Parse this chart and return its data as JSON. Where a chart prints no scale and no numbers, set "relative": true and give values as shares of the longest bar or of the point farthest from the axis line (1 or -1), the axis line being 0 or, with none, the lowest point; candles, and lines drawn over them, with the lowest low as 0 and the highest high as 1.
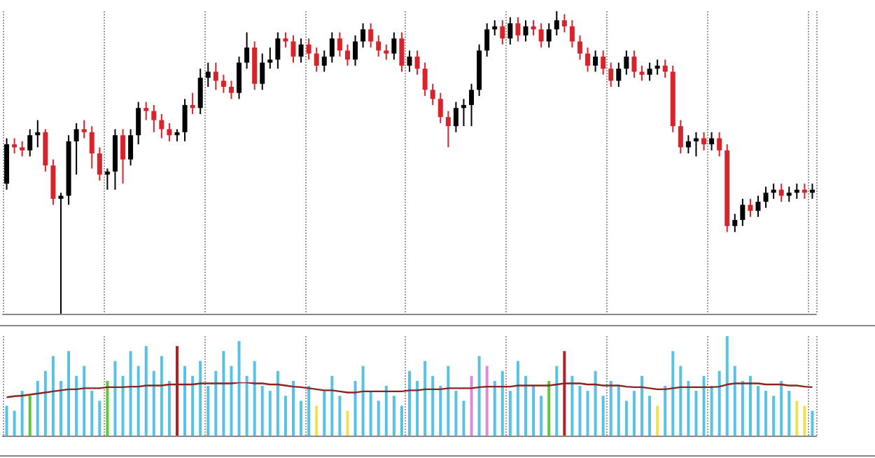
{
  "chart_data": [
    {
      "type": "candlestick",
      "relative": true,
      "grid": "x",
      "colors": [
        "#000000",
        "#d8232a",
        "#d8232a",
        "#000000",
        "#000000",
        "#d8232a",
        "#d8232a",
        "#000000",
        "#000000",
        "#000000",
        "#d8232a",
        "#d8232a",
        "#d8232a",
        "#000000",
        "#000000",
        "#d8232a",
        "#000000",
        "#000000",
        "#d8232a",
        "#d8232a",
        "#d8232a",
        "#d8232a",
        "#000000",
        "#000000",
        "#d8232a",
        "#000000",
        "#000000",
        "#d8232a",
        "#d8232a",
        "#d8232a",
        "#000000",
        "#000000",
        "#d8232a",
        "#000000",
        "#000000",
        "#000000",
        "#d8232a",
        "#d8232a",
        "#000000",
        "#d8232a",
        "#d8232a",
        "#000000",
        "#000000",
        "#d8232a",
        "#d8232a",
        "#000000",
        "#000000",
        "#d8232a",
        "#d8232a",
        "#d8232a",
        "#000000",
        "#d8232a",
        "#000000",
        "#d8232a",
        "#d8232a",
        "#d8232a",
        "#d8232a",
        "#d8232a",
        "#000000",
        "#000000",
        "#000000",
        "#000000",
        "#000000",
        "#000000",
        "#d8232a",
        "#000000",
        "#d8232a",
        "#000000",
        "#d8232a",
        "#d8232a",
        "#000000",
        "#000000",
        "#d8232a",
        "#d8232a",
        "#d8232a",
        "#d8232a",
        "#000000",
        "#d8232a",
        "#d8232a",
        "#000000",
        "#000000",
        "#d8232a",
        "#d8232a",
        "#000000",
        "#000000",
        "#d8232a",
        "#d8232a",
        "#d8232a",
        "#000000",
        "#000000",
        "#d8232a",
        "#000000",
        "#d8232a",
        "#d8232a",
        "#000000",
        "#000000",
        "#d8232a",
        "#000000",
        "#000000",
        "#000000",
        "#d8232a",
        "#000000",
        "#000000",
        "#d8232a",
        "#000000"
      ],
      "categories": [
        null,
        null,
        null,
        null,
        null,
        null,
        null,
        null,
        null,
        null,
        null,
        null,
        null,
        null,
        null,
        null,
        null,
        null,
        null,
        null,
        null,
        null,
        null,
        null,
        null,
        null,
        null,
        null,
        null,
        null,
        null,
        null,
        null,
        null,
        null,
        null,
        null,
        null,
        null,
        null,
        null,
        null,
        null,
        null,
        null,
        null,
        null,
        null,
        null,
        null,
        null,
        null,
        null,
        null,
        null,
        null,
        null,
        null,
        null,
        null,
        null,
        null,
        null,
        null,
        null,
        null,
        null,
        null,
        null,
        null,
        null,
        null,
        null,
        null,
        null,
        null,
        null,
        null,
        null,
        null,
        null,
        null,
        null,
        null,
        null,
        null,
        null,
        null,
        null,
        null,
        null,
        null,
        null,
        null,
        null,
        null,
        null,
        null,
        null,
        null,
        null,
        null,
        null,
        null,
        null
      ],
      "ohlc": [
        [
          0.43,
          0.58,
          0.41,
          0.56
        ],
        [
          0.56,
          0.58,
          0.53,
          0.55
        ],
        [
          0.55,
          0.57,
          0.52,
          0.54
        ],
        [
          0.54,
          0.61,
          0.52,
          0.59
        ],
        [
          0.59,
          0.64,
          0.55,
          0.6
        ],
        [
          0.6,
          0.61,
          0.47,
          0.49
        ],
        [
          0.49,
          0.51,
          0.36,
          0.38
        ],
        [
          0.38,
          0.4,
          0,
          0.39
        ],
        [
          0.39,
          0.59,
          0.36,
          0.57
        ],
        [
          0.57,
          0.63,
          0.46,
          0.61
        ],
        [
          0.61,
          0.64,
          0.58,
          0.6
        ],
        [
          0.6,
          0.62,
          0.48,
          0.53
        ],
        [
          0.53,
          0.55,
          0.44,
          0.46
        ],
        [
          0.46,
          0.48,
          0.41,
          0.47
        ],
        [
          0.47,
          0.61,
          0.41,
          0.59
        ],
        [
          0.59,
          0.61,
          0.43,
          0.51
        ],
        [
          0.51,
          0.61,
          0.49,
          0.59
        ],
        [
          0.59,
          0.7,
          0.56,
          0.68
        ],
        [
          0.68,
          0.7,
          0.64,
          0.67
        ],
        [
          0.67,
          0.69,
          0.6,
          0.64
        ],
        [
          0.64,
          0.66,
          0.58,
          0.61
        ],
        [
          0.61,
          0.63,
          0.57,
          0.59
        ],
        [
          0.59,
          0.61,
          0.57,
          0.6
        ],
        [
          0.6,
          0.71,
          0.57,
          0.69
        ],
        [
          0.69,
          0.73,
          0.66,
          0.68
        ],
        [
          0.68,
          0.81,
          0.66,
          0.78
        ],
        [
          0.78,
          0.83,
          0.75,
          0.8
        ],
        [
          0.8,
          0.83,
          0.74,
          0.77
        ],
        [
          0.77,
          0.79,
          0.73,
          0.75
        ],
        [
          0.75,
          0.77,
          0.71,
          0.73
        ],
        [
          0.73,
          0.85,
          0.71,
          0.83
        ],
        [
          0.83,
          0.93,
          0.81,
          0.88
        ],
        [
          0.88,
          0.9,
          0.74,
          0.76
        ],
        [
          0.76,
          0.86,
          0.74,
          0.83
        ],
        [
          0.83,
          0.88,
          0.81,
          0.84
        ],
        [
          0.84,
          0.93,
          0.81,
          0.91
        ],
        [
          0.91,
          0.93,
          0.88,
          0.9
        ],
        [
          0.9,
          0.92,
          0.83,
          0.85
        ],
        [
          0.85,
          0.91,
          0.83,
          0.89
        ],
        [
          0.89,
          0.91,
          0.84,
          0.86
        ],
        [
          0.86,
          0.88,
          0.8,
          0.82
        ],
        [
          0.82,
          0.87,
          0.8,
          0.85
        ],
        [
          0.85,
          0.93,
          0.83,
          0.91
        ],
        [
          0.91,
          0.93,
          0.85,
          0.87
        ],
        [
          0.87,
          0.89,
          0.82,
          0.84
        ],
        [
          0.84,
          0.92,
          0.82,
          0.9
        ],
        [
          0.9,
          0.96,
          0.88,
          0.94
        ],
        [
          0.94,
          0.96,
          0.88,
          0.9
        ],
        [
          0.9,
          0.92,
          0.85,
          0.87
        ],
        [
          0.87,
          0.89,
          0.84,
          0.86
        ],
        [
          0.86,
          0.93,
          0.84,
          0.91
        ],
        [
          0.91,
          0.93,
          0.8,
          0.82
        ],
        [
          0.82,
          0.87,
          0.8,
          0.85
        ],
        [
          0.85,
          0.87,
          0.79,
          0.81
        ],
        [
          0.81,
          0.83,
          0.72,
          0.74
        ],
        [
          0.74,
          0.76,
          0.69,
          0.71
        ],
        [
          0.71,
          0.73,
          0.63,
          0.65
        ],
        [
          0.65,
          0.67,
          0.55,
          0.62
        ],
        [
          0.62,
          0.7,
          0.6,
          0.68
        ],
        [
          0.68,
          0.71,
          0.62,
          0.69
        ],
        [
          0.69,
          0.76,
          0.62,
          0.74
        ],
        [
          0.74,
          0.89,
          0.72,
          0.87
        ],
        [
          0.87,
          0.96,
          0.85,
          0.94
        ],
        [
          0.94,
          0.97,
          0.92,
          0.95
        ],
        [
          0.95,
          0.97,
          0.89,
          0.91
        ],
        [
          0.91,
          0.98,
          0.89,
          0.96
        ],
        [
          0.96,
          0.98,
          0.9,
          0.92
        ],
        [
          0.92,
          0.97,
          0.9,
          0.95
        ],
        [
          0.95,
          0.97,
          0.92,
          0.94
        ],
        [
          0.94,
          0.96,
          0.88,
          0.9
        ],
        [
          0.9,
          0.96,
          0.88,
          0.94
        ],
        [
          0.94,
          1,
          0.92,
          0.97
        ],
        [
          0.97,
          0.99,
          0.93,
          0.95
        ],
        [
          0.95,
          0.97,
          0.88,
          0.9
        ],
        [
          0.9,
          0.92,
          0.84,
          0.86
        ],
        [
          0.86,
          0.88,
          0.8,
          0.82
        ],
        [
          0.82,
          0.87,
          0.8,
          0.85
        ],
        [
          0.85,
          0.87,
          0.79,
          0.81
        ],
        [
          0.81,
          0.83,
          0.75,
          0.77
        ],
        [
          0.77,
          0.83,
          0.75,
          0.81
        ],
        [
          0.81,
          0.87,
          0.79,
          0.85
        ],
        [
          0.85,
          0.87,
          0.78,
          0.8
        ],
        [
          0.8,
          0.82,
          0.77,
          0.79
        ],
        [
          0.79,
          0.83,
          0.77,
          0.81
        ],
        [
          0.81,
          0.84,
          0.79,
          0.82
        ],
        [
          0.82,
          0.84,
          0.78,
          0.8
        ],
        [
          0.8,
          0.82,
          0.6,
          0.62
        ],
        [
          0.62,
          0.64,
          0.53,
          0.55
        ],
        [
          0.55,
          0.59,
          0.53,
          0.57
        ],
        [
          0.57,
          0.6,
          0.52,
          0.58
        ],
        [
          0.58,
          0.6,
          0.54,
          0.56
        ],
        [
          0.56,
          0.6,
          0.54,
          0.58
        ],
        [
          0.58,
          0.6,
          0.52,
          0.54
        ],
        [
          0.54,
          0.56,
          0.27,
          0.29
        ],
        [
          0.29,
          0.33,
          0.27,
          0.31
        ],
        [
          0.31,
          0.38,
          0.29,
          0.36
        ],
        [
          0.36,
          0.38,
          0.32,
          0.34
        ],
        [
          0.34,
          0.39,
          0.32,
          0.37
        ],
        [
          0.37,
          0.42,
          0.35,
          0.4
        ],
        [
          0.4,
          0.43,
          0.38,
          0.41
        ],
        [
          0.41,
          0.43,
          0.37,
          0.39
        ],
        [
          0.39,
          0.42,
          0.37,
          0.4
        ],
        [
          0.4,
          0.43,
          0.38,
          0.41
        ],
        [
          0.41,
          0.43,
          0.38,
          0.4
        ],
        [
          0.4,
          0.43,
          0.38,
          0.41
        ]
      ]
    },
    {
      "type": "bar",
      "relative": true,
      "grid": "x",
      "categories": [
        null,
        null,
        null,
        null,
        null,
        null,
        null,
        null,
        null,
        null,
        null,
        null,
        null,
        null,
        null,
        null,
        null,
        null,
        null,
        null,
        null,
        null,
        null,
        null,
        null,
        null,
        null,
        null,
        null,
        null,
        null,
        null,
        null,
        null,
        null,
        null,
        null,
        null,
        null,
        null,
        null,
        null,
        null,
        null,
        null,
        null,
        null,
        null,
        null,
        null,
        null,
        null,
        null,
        null,
        null,
        null,
        null,
        null,
        null,
        null,
        null,
        null,
        null,
        null,
        null,
        null,
        null,
        null,
        null,
        null,
        null,
        null,
        null,
        null,
        null,
        null,
        null,
        null,
        null,
        null,
        null,
        null,
        null,
        null,
        null,
        null,
        null,
        null,
        null,
        null,
        null,
        null,
        null,
        null,
        null,
        null,
        null,
        null,
        null,
        null,
        null,
        null,
        null,
        null,
        null
      ],
      "values": [
        0.3,
        0.25,
        0.45,
        0.4,
        0.55,
        0.65,
        0.8,
        0.55,
        0.85,
        0.6,
        0.7,
        0.45,
        0.35,
        0.55,
        0.75,
        0.6,
        0.85,
        0.7,
        0.9,
        0.65,
        0.8,
        0.55,
        0.9,
        0.7,
        0.6,
        0.75,
        0.5,
        0.65,
        0.85,
        0.7,
        0.95,
        0.6,
        0.75,
        0.5,
        0.45,
        0.65,
        0.4,
        0.55,
        0.35,
        0.5,
        0.3,
        0.45,
        0.6,
        0.4,
        0.25,
        0.55,
        0.7,
        0.45,
        0.35,
        0.5,
        0.4,
        0.3,
        0.65,
        0.55,
        0.75,
        0.6,
        0.5,
        0.7,
        0.45,
        0.35,
        0.6,
        0.8,
        0.7,
        0.55,
        0.65,
        0.45,
        0.75,
        0.6,
        0.5,
        0.4,
        0.55,
        0.7,
        0.85,
        0.6,
        0.5,
        0.45,
        0.65,
        0.4,
        0.55,
        0.5,
        0.35,
        0.45,
        0.6,
        0.4,
        0.3,
        0.5,
        0.85,
        0.7,
        0.55,
        0.45,
        0.6,
        0.5,
        0.65,
        1,
        0.7,
        0.55,
        0.6,
        0.5,
        0.45,
        0.4,
        0.55,
        0.45,
        0.35,
        0.3,
        0.25
      ],
      "colors": [
        "#56c3e6",
        "#56c3e6",
        "#56c3e6",
        "#5cc93a",
        "#56c3e6",
        "#56c3e6",
        "#56c3e6",
        "#56c3e6",
        "#56c3e6",
        "#56c3e6",
        "#56c3e6",
        "#56c3e6",
        "#56c3e6",
        "#5cc93a",
        "#56c3e6",
        "#56c3e6",
        "#56c3e6",
        "#56c3e6",
        "#56c3e6",
        "#56c3e6",
        "#56c3e6",
        "#56c3e6",
        "#b22222",
        "#56c3e6",
        "#56c3e6",
        "#56c3e6",
        "#56c3e6",
        "#56c3e6",
        "#56c3e6",
        "#56c3e6",
        "#56c3e6",
        "#56c3e6",
        "#56c3e6",
        "#56c3e6",
        "#56c3e6",
        "#56c3e6",
        "#56c3e6",
        "#56c3e6",
        "#56c3e6",
        "#56c3e6",
        "#f2e24a",
        "#56c3e6",
        "#56c3e6",
        "#56c3e6",
        "#f2e24a",
        "#56c3e6",
        "#56c3e6",
        "#56c3e6",
        "#56c3e6",
        "#56c3e6",
        "#56c3e6",
        "#56c3e6",
        "#56c3e6",
        "#56c3e6",
        "#56c3e6",
        "#56c3e6",
        "#56c3e6",
        "#56c3e6",
        "#56c3e6",
        "#56c3e6",
        "#e08ad6",
        "#56c3e6",
        "#e08ad6",
        "#56c3e6",
        "#56c3e6",
        "#56c3e6",
        "#56c3e6",
        "#56c3e6",
        "#56c3e6",
        "#56c3e6",
        "#5cc93a",
        "#56c3e6",
        "#b22222",
        "#56c3e6",
        "#56c3e6",
        "#56c3e6",
        "#56c3e6",
        "#56c3e6",
        "#56c3e6",
        "#56c3e6",
        "#56c3e6",
        "#56c3e6",
        "#56c3e6",
        "#56c3e6",
        "#f2e24a",
        "#56c3e6",
        "#56c3e6",
        "#56c3e6",
        "#56c3e6",
        "#56c3e6",
        "#56c3e6",
        "#56c3e6",
        "#56c3e6",
        "#56c3e6",
        "#56c3e6",
        "#56c3e6",
        "#56c3e6",
        "#56c3e6",
        "#56c3e6",
        "#56c3e6",
        "#56c3e6",
        "#56c3e6",
        "#f2e24a",
        "#f2e24a",
        "#56c3e6"
      ]
    },
    {
      "type": "line",
      "relative": true,
      "color": "#8b2323",
      "categories": [
        null,
        null,
        null,
        null,
        null,
        null,
        null,
        null,
        null,
        null,
        null,
        null,
        null,
        null,
        null,
        null,
        null,
        null,
        null,
        null,
        null,
        null,
        null,
        null,
        null,
        null,
        null,
        null,
        null,
        null,
        null,
        null,
        null,
        null,
        null,
        null,
        null,
        null,
        null,
        null,
        null,
        null,
        null,
        null,
        null,
        null,
        null,
        null,
        null,
        null,
        null,
        null,
        null,
        null,
        null,
        null,
        null,
        null,
        null,
        null,
        null,
        null,
        null,
        null,
        null,
        null,
        null,
        null,
        null,
        null,
        null,
        null,
        null,
        null,
        null,
        null,
        null,
        null,
        null,
        null,
        null,
        null,
        null,
        null,
        null,
        null,
        null,
        null,
        null,
        null,
        null,
        null,
        null,
        null,
        null,
        null,
        null,
        null,
        null,
        null,
        null,
        null,
        null,
        null,
        null
      ],
      "values": [
        0.72,
        0.74,
        0.75,
        0.77,
        0.79,
        0.81,
        0.83,
        0.85,
        0.87,
        0.87,
        0.89,
        0.89,
        0.89,
        0.91,
        0.91,
        0.91,
        0.92,
        0.92,
        0.94,
        0.94,
        0.94,
        0.96,
        0.96,
        0.96,
        0.96,
        0.98,
        0.98,
        0.98,
        0.98,
        0.98,
        1,
        1,
        0.98,
        0.98,
        0.96,
        0.96,
        0.94,
        0.92,
        0.91,
        0.89,
        0.87,
        0.85,
        0.85,
        0.83,
        0.81,
        0.81,
        0.83,
        0.83,
        0.83,
        0.83,
        0.83,
        0.83,
        0.85,
        0.85,
        0.87,
        0.87,
        0.87,
        0.89,
        0.89,
        0.89,
        0.89,
        0.91,
        0.92,
        0.92,
        0.92,
        0.92,
        0.94,
        0.94,
        0.94,
        0.94,
        0.94,
        0.96,
        0.98,
        0.98,
        0.98,
        0.96,
        0.96,
        0.94,
        0.94,
        0.94,
        0.92,
        0.91,
        0.91,
        0.89,
        0.87,
        0.87,
        0.89,
        0.91,
        0.91,
        0.91,
        0.91,
        0.91,
        0.92,
        0.96,
        0.98,
        0.98,
        0.98,
        0.98,
        0.96,
        0.96,
        0.96,
        0.94,
        0.94,
        0.92,
        0.91
      ]
    }
  ]
}
